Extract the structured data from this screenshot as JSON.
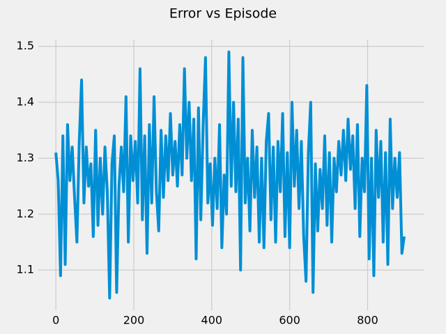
{
  "chart_data": {
    "type": "line",
    "title": "Error vs Episode",
    "x": [
      0,
      6,
      12,
      18,
      24,
      30,
      36,
      42,
      48,
      54,
      60,
      66,
      72,
      78,
      84,
      90,
      96,
      102,
      108,
      114,
      120,
      126,
      132,
      138,
      144,
      150,
      156,
      162,
      168,
      174,
      180,
      186,
      192,
      198,
      204,
      210,
      216,
      222,
      228,
      234,
      240,
      246,
      252,
      258,
      264,
      270,
      276,
      282,
      288,
      294,
      300,
      306,
      312,
      318,
      324,
      330,
      336,
      342,
      348,
      354,
      360,
      366,
      372,
      378,
      384,
      390,
      396,
      402,
      408,
      414,
      420,
      426,
      432,
      438,
      444,
      450,
      456,
      462,
      468,
      474,
      480,
      486,
      492,
      498,
      504,
      510,
      516,
      522,
      528,
      534,
      540,
      546,
      552,
      558,
      564,
      570,
      576,
      582,
      588,
      594,
      600,
      606,
      612,
      618,
      624,
      630,
      636,
      642,
      648,
      654,
      660,
      666,
      672,
      678,
      684,
      690,
      696,
      702,
      708,
      714,
      720,
      726,
      732,
      738,
      744,
      750,
      756,
      762,
      768,
      774,
      780,
      786,
      792,
      798,
      804,
      810,
      816,
      822,
      828,
      834,
      840,
      846,
      852,
      858,
      864,
      870,
      876,
      882,
      888,
      894
    ],
    "values": [
      1.31,
      1.26,
      1.09,
      1.34,
      1.11,
      1.36,
      1.26,
      1.32,
      1.23,
      1.15,
      1.33,
      1.44,
      1.22,
      1.32,
      1.25,
      1.29,
      1.16,
      1.35,
      1.18,
      1.3,
      1.2,
      1.32,
      1.24,
      1.05,
      1.29,
      1.34,
      1.06,
      1.25,
      1.32,
      1.24,
      1.41,
      1.15,
      1.34,
      1.26,
      1.33,
      1.22,
      1.46,
      1.19,
      1.34,
      1.13,
      1.36,
      1.22,
      1.41,
      1.24,
      1.17,
      1.35,
      1.23,
      1.34,
      1.26,
      1.38,
      1.27,
      1.33,
      1.25,
      1.36,
      1.27,
      1.46,
      1.3,
      1.4,
      1.26,
      1.37,
      1.12,
      1.39,
      1.19,
      1.36,
      1.48,
      1.22,
      1.29,
      1.18,
      1.3,
      1.21,
      1.36,
      1.14,
      1.27,
      1.2,
      1.49,
      1.25,
      1.4,
      1.24,
      1.37,
      1.1,
      1.48,
      1.22,
      1.3,
      1.17,
      1.35,
      1.23,
      1.32,
      1.15,
      1.3,
      1.14,
      1.33,
      1.38,
      1.19,
      1.32,
      1.15,
      1.33,
      1.24,
      1.38,
      1.16,
      1.31,
      1.14,
      1.4,
      1.25,
      1.35,
      1.21,
      1.33,
      1.16,
      1.08,
      1.31,
      1.4,
      1.06,
      1.29,
      1.17,
      1.28,
      1.21,
      1.34,
      1.18,
      1.31,
      1.15,
      1.3,
      1.24,
      1.33,
      1.27,
      1.35,
      1.26,
      1.37,
      1.28,
      1.34,
      1.21,
      1.36,
      1.16,
      1.3,
      1.24,
      1.43,
      1.12,
      1.3,
      1.09,
      1.35,
      1.23,
      1.33,
      1.15,
      1.31,
      1.11,
      1.37,
      1.21,
      1.3,
      1.23,
      1.31,
      1.13,
      1.16
    ],
    "color": "#008fd5",
    "xlim": [
      -45,
      944
    ],
    "xticks": [
      0,
      200,
      400,
      600,
      800
    ],
    "ylim": [
      1.028,
      1.512
    ],
    "yticks": [
      1.1,
      1.2,
      1.3,
      1.4,
      1.5
    ],
    "grid": true
  }
}
